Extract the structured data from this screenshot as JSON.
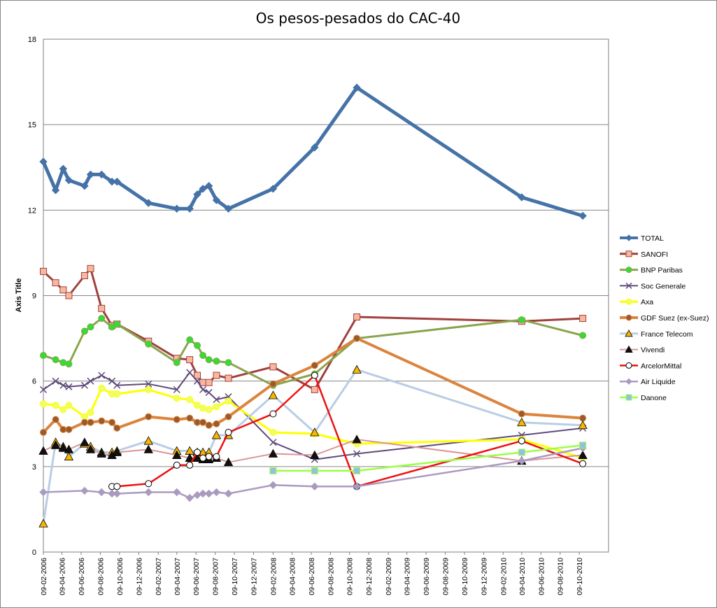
{
  "chart_data": {
    "type": "line",
    "title": "Os pesos-pesados do CAC-40",
    "ylabel": "Axis Title",
    "xlabel": "",
    "ylim": [
      0,
      18
    ],
    "yticks": [
      "0",
      "3",
      "6",
      "9",
      "12",
      "15",
      "18"
    ],
    "xlim": [
      "2006-02-09",
      "2011-01-10"
    ],
    "xticks": [
      "09-02-2006",
      "09-04-2006",
      "09-06-2006",
      "09-08-2006",
      "09-10-2006",
      "09-12-2006",
      "09-02-2007",
      "09-04-2007",
      "09-06-2007",
      "09-08-2007",
      "09-10-2007",
      "09-12-2007",
      "09-02-2008",
      "09-04-2008",
      "09-06-2008",
      "09-08-2008",
      "09-10-2008",
      "09-12-2008",
      "09-02-2009",
      "09-04-2009",
      "09-06-2009",
      "09-08-2009",
      "09-10-2009",
      "09-12-2009",
      "09-02-2010",
      "09-04-2010",
      "09-06-2010",
      "09-08-2010",
      "09-10-2010"
    ],
    "grid": "horizontal",
    "legend_position": "right",
    "series": [
      {
        "name": "TOTAL",
        "color": "#4572A7",
        "width": 5,
        "marker": "diamond",
        "marker_fill": "#4572A7",
        "points": [
          [
            "2006-02-09",
            13.7
          ],
          [
            "2006-03-20",
            12.7
          ],
          [
            "2006-04-13",
            13.45
          ],
          [
            "2006-05-01",
            13.05
          ],
          [
            "2006-06-20",
            12.85
          ],
          [
            "2006-07-09",
            13.25
          ],
          [
            "2006-08-13",
            13.25
          ],
          [
            "2006-09-15",
            13.0
          ],
          [
            "2006-10-01",
            13.0
          ],
          [
            "2007-01-09",
            12.25
          ],
          [
            "2007-04-09",
            12.05
          ],
          [
            "2007-05-20",
            12.05
          ],
          [
            "2007-06-13",
            12.55
          ],
          [
            "2007-07-01",
            12.75
          ],
          [
            "2007-07-20",
            12.85
          ],
          [
            "2007-08-13",
            12.35
          ],
          [
            "2007-09-20",
            12.05
          ],
          [
            "2008-02-09",
            12.75
          ],
          [
            "2008-06-20",
            14.2
          ],
          [
            "2008-11-01",
            16.3
          ],
          [
            "2010-04-09",
            12.45
          ],
          [
            "2010-10-20",
            11.8
          ]
        ]
      },
      {
        "name": "SANOFI",
        "color": "#A0413E",
        "width": 3,
        "marker": "square",
        "marker_fill": "#F8B8A0",
        "points": [
          [
            "2006-02-09",
            9.85
          ],
          [
            "2006-03-20",
            9.45
          ],
          [
            "2006-04-13",
            9.2
          ],
          [
            "2006-05-01",
            9.0
          ],
          [
            "2006-06-20",
            9.7
          ],
          [
            "2006-07-09",
            9.95
          ],
          [
            "2006-08-13",
            8.55
          ],
          [
            "2006-09-15",
            7.95
          ],
          [
            "2006-10-01",
            8.0
          ],
          [
            "2007-01-09",
            7.4
          ],
          [
            "2007-04-09",
            6.8
          ],
          [
            "2007-05-20",
            6.75
          ],
          [
            "2007-06-13",
            6.2
          ],
          [
            "2007-07-01",
            5.95
          ],
          [
            "2007-07-20",
            5.95
          ],
          [
            "2007-08-13",
            6.2
          ],
          [
            "2007-09-20",
            6.1
          ],
          [
            "2008-02-09",
            6.5
          ],
          [
            "2008-06-20",
            5.7
          ],
          [
            "2008-11-01",
            8.25
          ],
          [
            "2010-04-09",
            8.1
          ],
          [
            "2010-10-20",
            8.2
          ]
        ]
      },
      {
        "name": "BNP Paribas",
        "color": "#89A54E",
        "width": 3,
        "marker": "circle",
        "marker_fill": "#33DD33",
        "points": [
          [
            "2006-02-09",
            6.9
          ],
          [
            "2006-03-20",
            6.75
          ],
          [
            "2006-04-13",
            6.65
          ],
          [
            "2006-05-01",
            6.6
          ],
          [
            "2006-06-20",
            7.75
          ],
          [
            "2006-07-09",
            7.9
          ],
          [
            "2006-08-13",
            8.2
          ],
          [
            "2006-09-15",
            7.9
          ],
          [
            "2006-10-01",
            8.0
          ],
          [
            "2007-01-09",
            7.3
          ],
          [
            "2007-04-09",
            6.65
          ],
          [
            "2007-05-20",
            7.45
          ],
          [
            "2007-06-13",
            7.25
          ],
          [
            "2007-07-01",
            6.9
          ],
          [
            "2007-07-20",
            6.75
          ],
          [
            "2007-08-13",
            6.7
          ],
          [
            "2007-09-20",
            6.65
          ],
          [
            "2008-02-09",
            5.85
          ],
          [
            "2008-06-20",
            6.25
          ],
          [
            "2008-11-01",
            7.5
          ],
          [
            "2010-04-09",
            8.15
          ],
          [
            "2010-10-20",
            7.6
          ]
        ]
      },
      {
        "name": "Soc Generale",
        "color": "#604A7B",
        "width": 2,
        "marker": "x",
        "marker_fill": "#604A7B",
        "points": [
          [
            "2006-02-09",
            5.7
          ],
          [
            "2006-03-20",
            6.0
          ],
          [
            "2006-04-13",
            5.85
          ],
          [
            "2006-05-01",
            5.8
          ],
          [
            "2006-06-20",
            5.85
          ],
          [
            "2006-07-09",
            6.0
          ],
          [
            "2006-08-13",
            6.2
          ],
          [
            "2006-09-15",
            6.0
          ],
          [
            "2006-10-01",
            5.85
          ],
          [
            "2007-01-09",
            5.9
          ],
          [
            "2007-04-09",
            5.7
          ],
          [
            "2007-05-20",
            6.3
          ],
          [
            "2007-06-13",
            6.0
          ],
          [
            "2007-07-01",
            5.7
          ],
          [
            "2007-07-20",
            5.6
          ],
          [
            "2007-08-13",
            5.35
          ],
          [
            "2007-09-20",
            5.45
          ],
          [
            "2008-02-09",
            3.85
          ],
          [
            "2008-06-20",
            3.25
          ],
          [
            "2008-11-01",
            3.45
          ],
          [
            "2010-04-09",
            4.1
          ],
          [
            "2010-10-20",
            4.35
          ]
        ]
      },
      {
        "name": "Axa",
        "color": "#FFFF00",
        "width": 3,
        "marker": "circle",
        "marker_fill": "#EEFF66",
        "points": [
          [
            "2006-02-09",
            5.2
          ],
          [
            "2006-03-20",
            5.15
          ],
          [
            "2006-04-13",
            5.0
          ],
          [
            "2006-05-01",
            5.15
          ],
          [
            "2006-06-20",
            4.75
          ],
          [
            "2006-07-09",
            4.9
          ],
          [
            "2006-08-13",
            5.75
          ],
          [
            "2006-09-15",
            5.55
          ],
          [
            "2006-10-01",
            5.55
          ],
          [
            "2007-01-09",
            5.7
          ],
          [
            "2007-04-09",
            5.4
          ],
          [
            "2007-05-20",
            5.35
          ],
          [
            "2007-06-13",
            5.15
          ],
          [
            "2007-07-01",
            5.05
          ],
          [
            "2007-07-20",
            5.0
          ],
          [
            "2007-08-13",
            5.1
          ],
          [
            "2007-09-20",
            5.3
          ],
          [
            "2008-02-09",
            4.2
          ],
          [
            "2008-06-20",
            4.15
          ],
          [
            "2008-11-01",
            3.8
          ],
          [
            "2010-04-09",
            3.95
          ],
          [
            "2010-10-20",
            3.3
          ]
        ]
      },
      {
        "name": "GDF Suez (ex-Suez)",
        "color": "#DB843D",
        "width": 4,
        "marker": "circle",
        "marker_fill": "#9A5A2A",
        "points": [
          [
            "2006-02-09",
            4.2
          ],
          [
            "2006-03-20",
            4.65
          ],
          [
            "2006-04-13",
            4.3
          ],
          [
            "2006-05-01",
            4.3
          ],
          [
            "2006-06-20",
            4.55
          ],
          [
            "2006-07-09",
            4.55
          ],
          [
            "2006-08-13",
            4.6
          ],
          [
            "2006-09-15",
            4.55
          ],
          [
            "2006-10-01",
            4.35
          ],
          [
            "2007-01-09",
            4.75
          ],
          [
            "2007-04-09",
            4.65
          ],
          [
            "2007-05-20",
            4.7
          ],
          [
            "2007-06-13",
            4.55
          ],
          [
            "2007-07-01",
            4.55
          ],
          [
            "2007-07-20",
            4.45
          ],
          [
            "2007-08-13",
            4.5
          ],
          [
            "2007-09-20",
            4.75
          ],
          [
            "2008-02-09",
            5.9
          ],
          [
            "2008-06-20",
            6.55
          ],
          [
            "2008-11-01",
            7.5
          ],
          [
            "2010-04-09",
            4.85
          ],
          [
            "2010-10-20",
            4.7
          ]
        ]
      },
      {
        "name": "France Telecom",
        "color": "#B9CDE5",
        "width": 3,
        "marker": "triangle",
        "marker_fill": "#F7B500",
        "points": [
          [
            "2006-02-09",
            1.0
          ],
          [
            "2006-03-20",
            3.85
          ],
          [
            "2006-04-13",
            3.7
          ],
          [
            "2006-05-01",
            3.35
          ],
          [
            "2006-06-20",
            3.8
          ],
          [
            "2006-07-09",
            3.7
          ],
          [
            "2006-08-13",
            3.5
          ],
          [
            "2006-09-15",
            3.5
          ],
          [
            "2006-10-01",
            3.55
          ],
          [
            "2007-01-09",
            3.9
          ],
          [
            "2007-04-09",
            3.55
          ],
          [
            "2007-05-20",
            3.55
          ],
          [
            "2007-06-13",
            3.5
          ],
          [
            "2007-07-01",
            3.5
          ],
          [
            "2007-07-20",
            3.5
          ],
          [
            "2007-08-13",
            4.1
          ],
          [
            "2007-09-20",
            4.1
          ],
          [
            "2008-02-09",
            5.5
          ],
          [
            "2008-06-20",
            4.2
          ],
          [
            "2008-11-01",
            6.4
          ],
          [
            "2010-04-09",
            4.55
          ],
          [
            "2010-10-20",
            4.45
          ]
        ]
      },
      {
        "name": "Vivendi",
        "color": "#D99694",
        "width": 2,
        "marker": "triangle",
        "marker_fill": "#111111",
        "points": [
          [
            "2006-02-09",
            3.55
          ],
          [
            "2006-03-20",
            3.75
          ],
          [
            "2006-04-13",
            3.65
          ],
          [
            "2006-05-01",
            3.6
          ],
          [
            "2006-06-20",
            3.85
          ],
          [
            "2006-07-09",
            3.6
          ],
          [
            "2006-08-13",
            3.45
          ],
          [
            "2006-09-15",
            3.4
          ],
          [
            "2006-10-01",
            3.5
          ],
          [
            "2007-01-09",
            3.6
          ],
          [
            "2007-04-09",
            3.4
          ],
          [
            "2007-05-20",
            3.3
          ],
          [
            "2007-06-13",
            3.3
          ],
          [
            "2007-07-01",
            3.25
          ],
          [
            "2007-07-20",
            3.25
          ],
          [
            "2007-08-13",
            3.3
          ],
          [
            "2007-09-20",
            3.15
          ],
          [
            "2008-02-09",
            3.45
          ],
          [
            "2008-06-20",
            3.4
          ],
          [
            "2008-11-01",
            3.95
          ],
          [
            "2010-04-09",
            3.2
          ],
          [
            "2010-10-20",
            3.4
          ]
        ]
      },
      {
        "name": "ArcelorMittal",
        "color": "#EE1111",
        "width": 2.5,
        "marker": "circle",
        "marker_fill": "#FFFFFF",
        "points": [
          [
            "2006-09-15",
            2.3
          ],
          [
            "2006-10-01",
            2.3
          ],
          [
            "2007-01-09",
            2.4
          ],
          [
            "2007-04-09",
            3.05
          ],
          [
            "2007-05-20",
            3.05
          ],
          [
            "2007-06-13",
            3.5
          ],
          [
            "2007-07-01",
            3.3
          ],
          [
            "2007-07-20",
            3.35
          ],
          [
            "2007-08-13",
            3.35
          ],
          [
            "2007-09-20",
            4.2
          ],
          [
            "2008-02-09",
            4.85
          ],
          [
            "2008-06-20",
            6.2
          ],
          [
            "2008-11-01",
            2.3
          ],
          [
            "2010-04-09",
            3.9
          ],
          [
            "2010-10-20",
            3.1
          ]
        ]
      },
      {
        "name": "Air Liquide",
        "color": "#AB9AC0",
        "width": 2.5,
        "marker": "diamond",
        "marker_fill": "#AB9AC0",
        "points": [
          [
            "2006-02-09",
            2.1
          ],
          [
            "2006-06-20",
            2.15
          ],
          [
            "2006-08-13",
            2.1
          ],
          [
            "2006-09-15",
            2.05
          ],
          [
            "2006-10-01",
            2.05
          ],
          [
            "2007-01-09",
            2.1
          ],
          [
            "2007-04-09",
            2.1
          ],
          [
            "2007-05-20",
            1.9
          ],
          [
            "2007-06-13",
            2.0
          ],
          [
            "2007-07-01",
            2.05
          ],
          [
            "2007-07-20",
            2.05
          ],
          [
            "2007-08-13",
            2.1
          ],
          [
            "2007-09-20",
            2.05
          ],
          [
            "2008-02-09",
            2.35
          ],
          [
            "2008-06-20",
            2.3
          ],
          [
            "2008-11-01",
            2.3
          ],
          [
            "2010-04-09",
            3.2
          ],
          [
            "2010-10-20",
            3.65
          ]
        ]
      },
      {
        "name": "Danone",
        "color": "#99FF44",
        "width": 2.5,
        "marker": "square",
        "marker_fill": "#93C0E0",
        "points": [
          [
            "2008-02-09",
            2.85
          ],
          [
            "2008-06-20",
            2.85
          ],
          [
            "2008-11-01",
            2.85
          ],
          [
            "2010-04-09",
            3.5
          ],
          [
            "2010-10-20",
            3.75
          ]
        ]
      }
    ]
  }
}
